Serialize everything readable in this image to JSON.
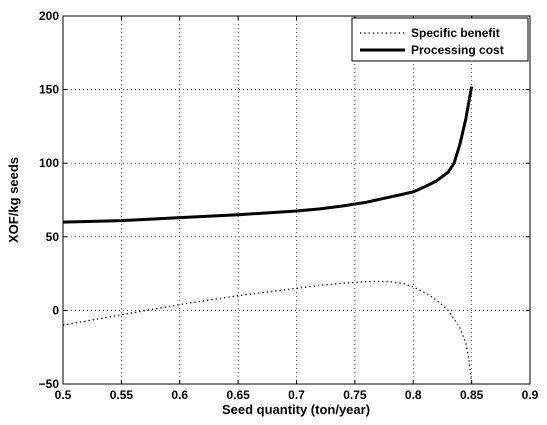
{
  "chart_data": {
    "type": "line",
    "title": "",
    "xlabel": "Seed quantity (ton/year)",
    "ylabel": "XOF/kg seeds",
    "xlim": [
      0.5,
      0.9
    ],
    "ylim": [
      -50,
      200
    ],
    "xticks": [
      "0.5",
      "0.55",
      "0.6",
      "0.65",
      "0.7",
      "0.75",
      "0.8",
      "0.85",
      "0.9"
    ],
    "yticks": [
      "−50",
      "0",
      "50",
      "100",
      "150",
      "200"
    ],
    "grid": true,
    "legend_position": "top-right",
    "series": [
      {
        "name": "Specific benefit",
        "line_style": "dotted",
        "color": "#000000",
        "x": [
          0.5,
          0.55,
          0.6,
          0.65,
          0.7,
          0.72,
          0.74,
          0.76,
          0.77,
          0.78,
          0.79,
          0.8,
          0.81,
          0.82,
          0.83,
          0.84,
          0.845,
          0.848,
          0.85
        ],
        "y": [
          -10,
          -3,
          4,
          10,
          15,
          17,
          18.5,
          19.5,
          19.7,
          19.5,
          18.5,
          16,
          12,
          7,
          0,
          -12,
          -22,
          -35,
          -50
        ]
      },
      {
        "name": "Processing cost",
        "line_style": "solid",
        "color": "#000000",
        "x": [
          0.5,
          0.55,
          0.6,
          0.65,
          0.7,
          0.72,
          0.74,
          0.76,
          0.78,
          0.8,
          0.81,
          0.82,
          0.83,
          0.835,
          0.84,
          0.845,
          0.85
        ],
        "y": [
          60,
          61,
          63,
          65,
          67.5,
          69,
          71,
          73.5,
          77,
          80.5,
          84,
          88,
          94,
          100,
          113,
          130,
          152
        ]
      }
    ]
  }
}
